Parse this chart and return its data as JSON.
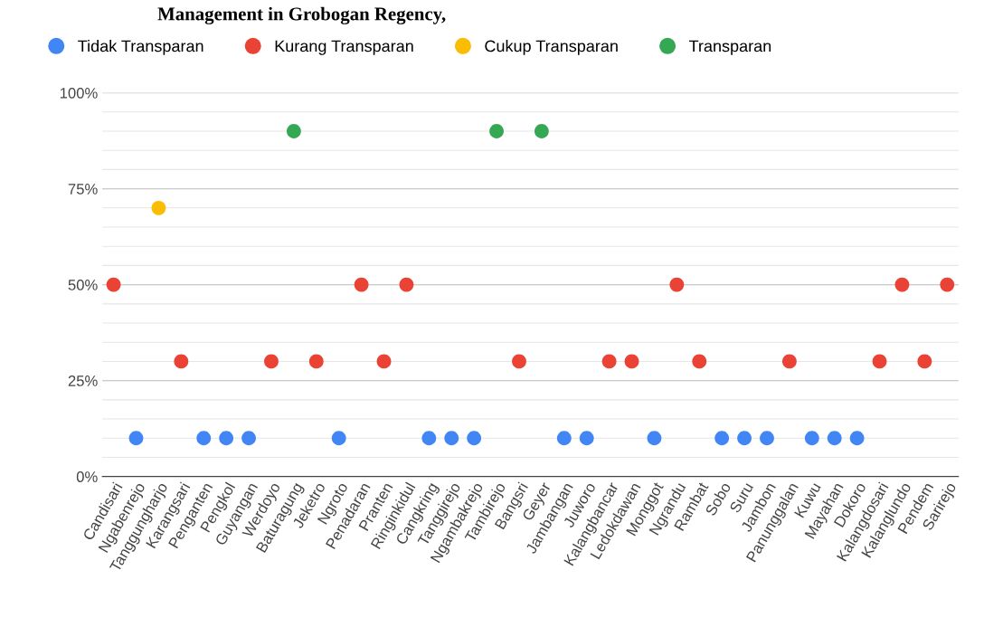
{
  "chart_data": {
    "type": "scatter",
    "annotations": [
      "Management in Grobogan Regency,"
    ],
    "categories": [
      "Candisari",
      "Ngabenrejo",
      "Tanggungharjo",
      "Karangsari",
      "Penganten",
      "Pengkol",
      "Guyangan",
      "Werdoyo",
      "Baturagung",
      "Jeketro",
      "Ngroto",
      "Penadaran",
      "Pranten",
      "Ringinkidul",
      "Cangkring",
      "Tanggirejo",
      "Ngambakrejo",
      "Tambirejo",
      "Bangsri",
      "Geyer",
      "Jambangan",
      "Juworo",
      "Kalangbancar",
      "Ledokdawan",
      "Monggot",
      "Ngrandu",
      "Rambat",
      "Sobo",
      "Suru",
      "Jambon",
      "Panunggalan",
      "Kuwu",
      "Mayahan",
      "Dokoro",
      "Kalangdosari",
      "Kalanglundo",
      "Pendem",
      "Sarirejo"
    ],
    "series": [
      {
        "name": "Tidak Transparan",
        "color": "#4285f4",
        "values": [
          null,
          10,
          null,
          null,
          10,
          10,
          10,
          null,
          null,
          null,
          10,
          null,
          null,
          null,
          10,
          10,
          10,
          null,
          null,
          null,
          10,
          10,
          null,
          null,
          10,
          null,
          null,
          10,
          10,
          10,
          null,
          10,
          10,
          10,
          null,
          null,
          null,
          null
        ]
      },
      {
        "name": "Kurang Transparan",
        "color": "#ea4335",
        "values": [
          50,
          null,
          null,
          30,
          null,
          null,
          null,
          30,
          null,
          30,
          null,
          50,
          30,
          50,
          null,
          null,
          null,
          null,
          30,
          null,
          null,
          null,
          30,
          30,
          null,
          50,
          30,
          null,
          null,
          null,
          30,
          null,
          null,
          null,
          30,
          50,
          30,
          50
        ]
      },
      {
        "name": "Cukup Transparan",
        "color": "#fbbc04",
        "values": [
          null,
          null,
          70,
          null,
          null,
          null,
          null,
          null,
          null,
          null,
          null,
          null,
          null,
          null,
          null,
          null,
          null,
          null,
          null,
          null,
          null,
          null,
          null,
          null,
          null,
          null,
          null,
          null,
          null,
          null,
          null,
          null,
          null,
          null,
          null,
          null,
          null,
          null
        ]
      },
      {
        "name": "Transparan",
        "color": "#34a853",
        "values": [
          null,
          null,
          null,
          null,
          null,
          null,
          null,
          null,
          90,
          null,
          null,
          null,
          null,
          null,
          null,
          null,
          null,
          90,
          null,
          90,
          null,
          null,
          null,
          null,
          null,
          null,
          null,
          null,
          null,
          null,
          null,
          null,
          null,
          null,
          null,
          null,
          null,
          null
        ]
      }
    ],
    "ylim": [
      0,
      100
    ],
    "yticks": [
      {
        "value": 0,
        "label": "0%"
      },
      {
        "value": 25,
        "label": "25%"
      },
      {
        "value": 50,
        "label": "50%"
      },
      {
        "value": 75,
        "label": "75%"
      },
      {
        "value": 100,
        "label": "100%"
      }
    ],
    "grid": "y",
    "legend": "top left",
    "marker": "circle"
  }
}
